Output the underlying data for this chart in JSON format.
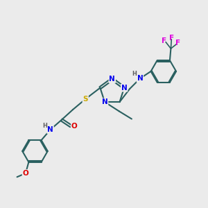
{
  "bg_color": "#ebebeb",
  "atom_colors": {
    "N": "#0000ee",
    "S": "#ccaa00",
    "O": "#dd0000",
    "F": "#dd00dd",
    "C": "#2a6060",
    "H": "#606060",
    "default": "#000000"
  },
  "bond_color": "#2a6060",
  "font_size": 7.5,
  "title": ""
}
